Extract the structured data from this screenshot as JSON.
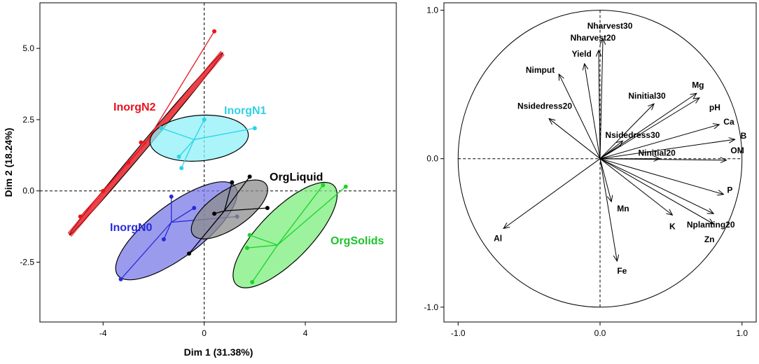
{
  "chart_data": [
    {
      "type": "scatter",
      "subtype": "pca-individuals",
      "xlabel": "Dim 1 (31.38%)",
      "ylabel": "Dim 2 (18.24%)",
      "xlim": [
        -6.5,
        7.6
      ],
      "ylim": [
        -4.6,
        6.6
      ],
      "xticks": [
        -4,
        0,
        4
      ],
      "yticks": [
        -2.5,
        0.0,
        2.5,
        5.0
      ],
      "xtick_labels": [
        "-4",
        "0",
        "4"
      ],
      "ytick_labels": [
        "-2.5",
        "0.0",
        "2.5",
        "5.0"
      ],
      "groups": [
        {
          "name": "InorgN2",
          "color": "#e8141e",
          "fill": "#f08c8c",
          "centroid": [
            -2.3,
            1.7
          ],
          "points": [
            [
              0.4,
              5.6
            ],
            [
              -2.5,
              1.7
            ],
            [
              -3.0,
              1.0
            ],
            [
              -4.0,
              0.0
            ],
            [
              -4.9,
              -0.9
            ]
          ],
          "ellipse": {
            "cx": -2.3,
            "cy": 1.65,
            "rx": 4.4,
            "ry": 0.13,
            "angle_deg": 46.5
          }
        },
        {
          "name": "InorgN1",
          "color": "#2ad4e8",
          "fill": "#8ef0f8",
          "centroid": [
            -0.4,
            1.8
          ],
          "points": [
            [
              -1.7,
              2.2
            ],
            [
              2.0,
              2.2
            ],
            [
              0.0,
              2.5
            ],
            [
              -1.0,
              1.2
            ],
            [
              -0.9,
              0.8
            ]
          ],
          "ellipse": {
            "cx": -0.2,
            "cy": 1.85,
            "rx": 1.95,
            "ry": 0.8,
            "angle_deg": 4
          }
        },
        {
          "name": "InorgN0",
          "color": "#2a2ad8",
          "fill": "#7a7ae8",
          "centroid": [
            -1.3,
            -1.1
          ],
          "points": [
            [
              -1.3,
              -0.2
            ],
            [
              -0.4,
              -0.6
            ],
            [
              1.3,
              -0.9
            ],
            [
              -1.6,
              -1.7
            ],
            [
              -3.3,
              -3.1
            ]
          ],
          "ellipse": {
            "cx": -1.1,
            "cy": -1.4,
            "rx": 2.8,
            "ry": 0.95,
            "angle_deg": 33
          }
        },
        {
          "name": "OrgLiquid",
          "color": "#000000",
          "fill": "#8c8c8c",
          "centroid": [
            0.8,
            -0.7
          ],
          "points": [
            [
              1.8,
              0.5
            ],
            [
              1.1,
              0.3
            ],
            [
              2.5,
              -0.6
            ],
            [
              0.4,
              -0.8
            ],
            [
              -0.6,
              -2.2
            ]
          ],
          "ellipse": {
            "cx": 1.0,
            "cy": -0.65,
            "rx": 1.7,
            "ry": 0.68,
            "angle_deg": 30
          }
        },
        {
          "name": "OrgSolids",
          "color": "#1ad42a",
          "fill": "#7cee7c",
          "centroid": [
            2.9,
            -1.9
          ],
          "points": [
            [
              4.7,
              0.2
            ],
            [
              5.6,
              0.15
            ],
            [
              1.8,
              -1.55
            ],
            [
              1.7,
              -2.0
            ],
            [
              1.9,
              -3.2
            ]
          ],
          "ellipse": {
            "cx": 3.2,
            "cy": -1.55,
            "rx": 2.6,
            "ry": 0.95,
            "angle_deg": 41
          }
        }
      ]
    },
    {
      "type": "scatter",
      "subtype": "correlation-circle",
      "xlim": [
        -1.1,
        1.1
      ],
      "ylim": [
        -1.1,
        1.05
      ],
      "xticks": [
        -1.0,
        0.0,
        1.0
      ],
      "yticks": [
        -1.0,
        0.0,
        1.0
      ],
      "xtick_labels": [
        "-1.0",
        "0.0",
        "1.0"
      ],
      "ytick_labels": [
        "-1.0",
        "0.0",
        "1.0"
      ],
      "variables": [
        {
          "name": "Nharvest30",
          "x": 0.02,
          "y": 0.81
        },
        {
          "name": "Nharvest20",
          "x": -0.01,
          "y": 0.73
        },
        {
          "name": "Yield",
          "x": -0.11,
          "y": 0.64
        },
        {
          "name": "Nimput",
          "x": -0.29,
          "y": 0.57
        },
        {
          "name": "Nsidedress20",
          "x": -0.36,
          "y": 0.27
        },
        {
          "name": "Nsidedress30",
          "x": 0.16,
          "y": 0.12
        },
        {
          "name": "Ninitial30",
          "x": 0.38,
          "y": 0.37
        },
        {
          "name": "Mg",
          "x": 0.68,
          "y": 0.44
        },
        {
          "name": "pH",
          "x": 0.7,
          "y": 0.41
        },
        {
          "name": "Ca",
          "x": 0.84,
          "y": 0.23
        },
        {
          "name": "B",
          "x": 0.95,
          "y": 0.13
        },
        {
          "name": "OM",
          "x": 0.89,
          "y": -0.01
        },
        {
          "name": "Ninitial20",
          "x": 0.42,
          "y": 0.0
        },
        {
          "name": "P",
          "x": 0.87,
          "y": -0.24
        },
        {
          "name": "Nplanting20",
          "x": 0.8,
          "y": -0.37
        },
        {
          "name": "Zn",
          "x": 0.8,
          "y": -0.44
        },
        {
          "name": "K",
          "x": 0.51,
          "y": -0.38
        },
        {
          "name": "Mn",
          "x": 0.08,
          "y": -0.29
        },
        {
          "name": "Fe",
          "x": 0.12,
          "y": -0.69
        },
        {
          "name": "Al",
          "x": -0.68,
          "y": -0.47
        }
      ]
    }
  ]
}
